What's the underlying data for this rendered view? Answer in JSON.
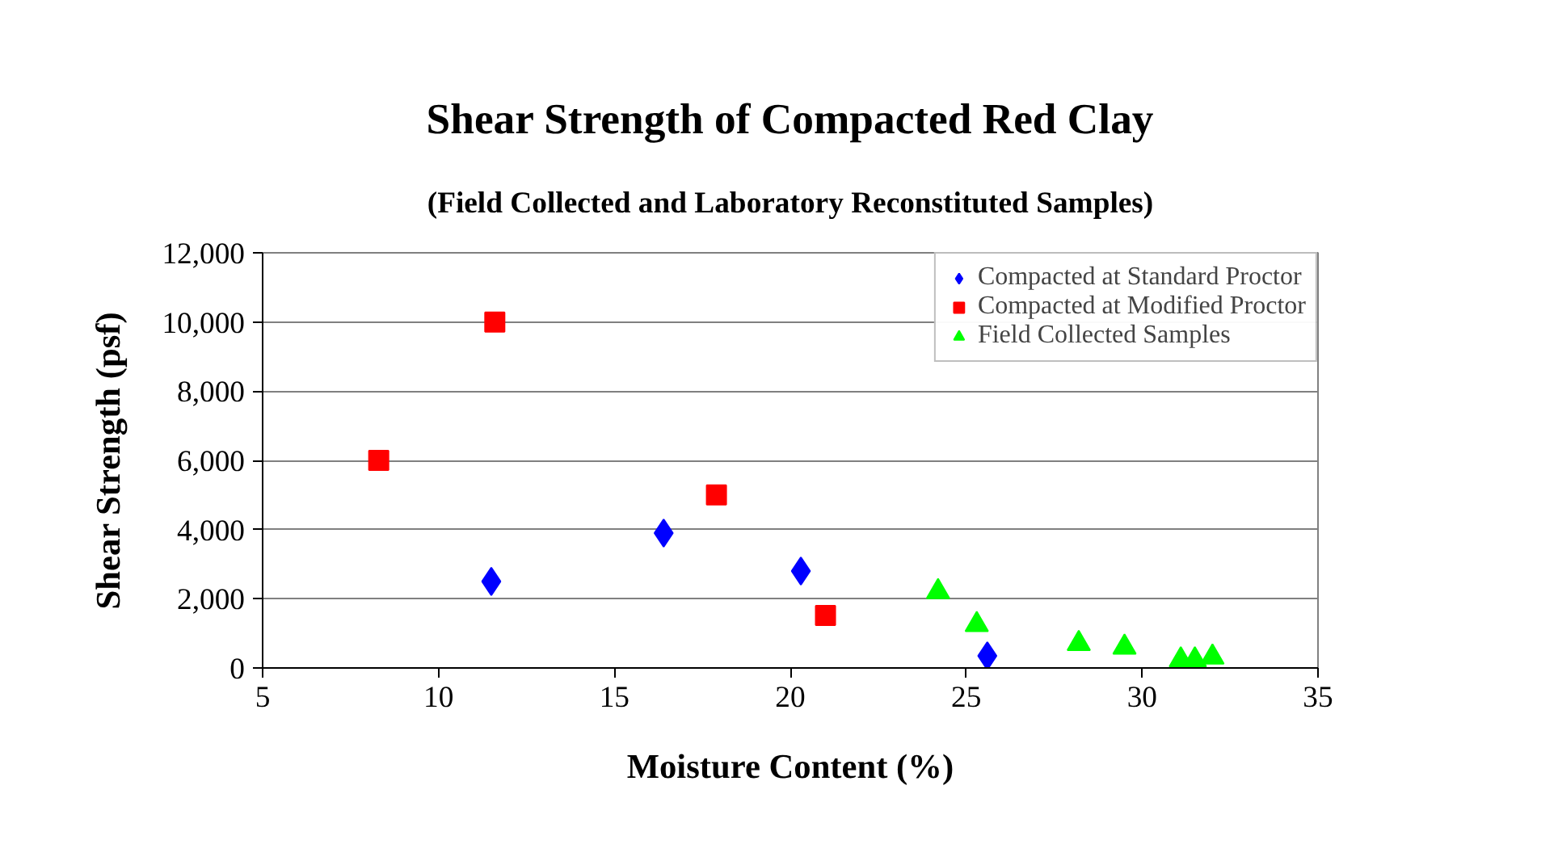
{
  "chart_data": {
    "type": "scatter",
    "title": "Shear Strength of Compacted Red Clay",
    "subtitle": "(Field Collected and Laboratory Reconstituted Samples)",
    "xlabel": "Moisture Content (%)",
    "ylabel": "Shear Strength (psf)",
    "series": [
      {
        "name": "Compacted at Standard Proctor",
        "color": "#0000ff",
        "marker": "diamond",
        "x": [
          11.5,
          16.4,
          20.3,
          25.6
        ],
        "values": [
          2500,
          3900,
          2800,
          350
        ]
      },
      {
        "name": "Compacted at Modified Proctor",
        "color": "#ff0000",
        "marker": "square",
        "x": [
          8.3,
          11.6,
          17.9,
          21.0
        ],
        "values": [
          6000,
          10000,
          5000,
          1520
        ]
      },
      {
        "name": "Field Collected Samples",
        "color": "#00ff00",
        "marker": "triangle",
        "x": [
          24.2,
          25.3,
          28.2,
          29.5,
          31.1,
          31.5,
          32.0
        ],
        "values": [
          2200,
          1250,
          700,
          600,
          230,
          230,
          310
        ]
      }
    ],
    "xlim": [
      5,
      35
    ],
    "xticks": [
      5,
      10,
      15,
      20,
      25,
      30,
      35
    ],
    "ylim": [
      0,
      12000
    ],
    "yticks": [
      0,
      {
        "value": 2000,
        "label": "2,000"
      },
      {
        "value": 4000,
        "label": "4,000"
      },
      {
        "value": 6000,
        "label": "6,000"
      },
      {
        "value": 8000,
        "label": "8,000"
      },
      {
        "value": 10000,
        "label": "10,000"
      },
      {
        "value": 12000,
        "label": "12,000"
      }
    ],
    "grid": "y",
    "legend": "top right"
  }
}
